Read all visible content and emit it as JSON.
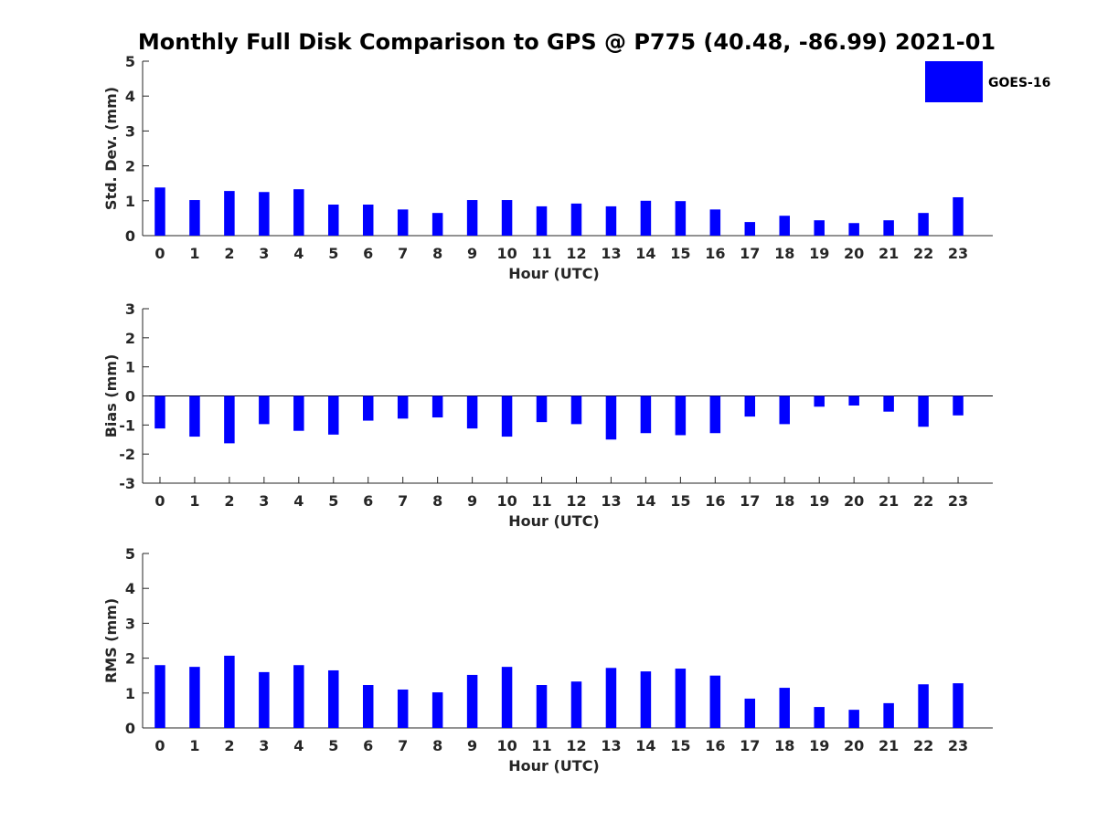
{
  "figure": {
    "title": "Monthly Full Disk Comparison to GPS @ P775 (40.48, -86.99) 2021-01"
  },
  "colors": {
    "bar": "#0000ff",
    "axis": "#262626",
    "background": "#ffffff"
  },
  "legend": {
    "label": "GOES-16",
    "placement": "top-right",
    "color": "#0000ff"
  },
  "chart_data": [
    {
      "type": "bar",
      "title": "",
      "xlabel": "Hour (UTC)",
      "ylabel": "Std. Dev. (mm)",
      "ylim": [
        0,
        5
      ],
      "yticks": [
        "0",
        "1",
        "2",
        "3",
        "4",
        "5"
      ],
      "categories": [
        "0",
        "1",
        "2",
        "3",
        "4",
        "5",
        "6",
        "7",
        "8",
        "9",
        "10",
        "11",
        "12",
        "13",
        "14",
        "15",
        "16",
        "17",
        "18",
        "19",
        "20",
        "21",
        "22",
        "23"
      ],
      "series": [
        {
          "name": "GOES-16",
          "values": [
            1.38,
            1.02,
            1.28,
            1.25,
            1.33,
            0.89,
            0.89,
            0.75,
            0.65,
            1.02,
            1.02,
            0.84,
            0.92,
            0.84,
            1.0,
            0.99,
            0.75,
            0.39,
            0.57,
            0.44,
            0.36,
            0.44,
            0.65,
            1.1
          ]
        }
      ],
      "grid": false
    },
    {
      "type": "bar",
      "title": "",
      "xlabel": "Hour (UTC)",
      "ylabel": "Bias (mm)",
      "ylim": [
        -3,
        3
      ],
      "yticks": [
        "-3",
        "-2",
        "-1",
        "0",
        "1",
        "2",
        "3"
      ],
      "categories": [
        "0",
        "1",
        "2",
        "3",
        "4",
        "5",
        "6",
        "7",
        "8",
        "9",
        "10",
        "11",
        "12",
        "13",
        "14",
        "15",
        "16",
        "17",
        "18",
        "19",
        "20",
        "21",
        "22",
        "23"
      ],
      "series": [
        {
          "name": "GOES-16",
          "values": [
            -1.12,
            -1.4,
            -1.63,
            -0.97,
            -1.2,
            -1.33,
            -0.85,
            -0.78,
            -0.74,
            -1.12,
            -1.4,
            -0.9,
            -0.97,
            -1.5,
            -1.28,
            -1.35,
            -1.28,
            -0.71,
            -0.97,
            -0.37,
            -0.33,
            -0.54,
            -1.06,
            -0.67
          ]
        }
      ],
      "grid": false
    },
    {
      "type": "bar",
      "title": "",
      "xlabel": "Hour (UTC)",
      "ylabel": "RMS (mm)",
      "ylim": [
        0,
        5
      ],
      "yticks": [
        "0",
        "1",
        "2",
        "3",
        "4",
        "5"
      ],
      "categories": [
        "0",
        "1",
        "2",
        "3",
        "4",
        "5",
        "6",
        "7",
        "8",
        "9",
        "10",
        "11",
        "12",
        "13",
        "14",
        "15",
        "16",
        "17",
        "18",
        "19",
        "20",
        "21",
        "22",
        "23"
      ],
      "series": [
        {
          "name": "GOES-16",
          "values": [
            1.8,
            1.75,
            2.07,
            1.6,
            1.8,
            1.65,
            1.23,
            1.1,
            1.02,
            1.52,
            1.75,
            1.23,
            1.33,
            1.72,
            1.62,
            1.7,
            1.5,
            0.84,
            1.15,
            0.6,
            0.52,
            0.71,
            1.25,
            1.28
          ]
        }
      ],
      "grid": false
    }
  ]
}
